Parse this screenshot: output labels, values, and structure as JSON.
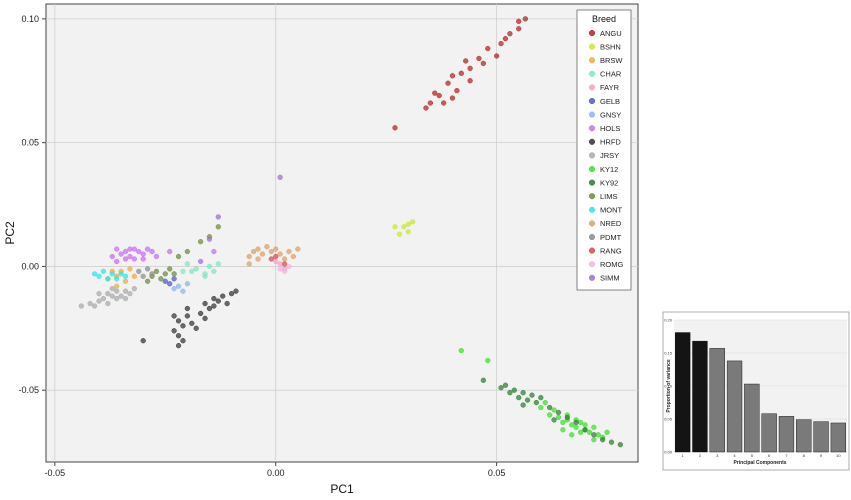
{
  "chart_data": [
    {
      "type": "scatter",
      "title": "",
      "xlabel": "PC1",
      "ylabel": "PC2",
      "xlim": [
        -0.052,
        0.082
      ],
      "ylim": [
        -0.079,
        0.106
      ],
      "xticks": [
        -0.05,
        0.0,
        0.05
      ],
      "xtick_labels": [
        "-0.05",
        "0.00",
        "0.05"
      ],
      "yticks": [
        -0.05,
        0.0,
        0.05,
        0.1
      ],
      "ytick_labels": [
        "-0.05",
        "0.00",
        "0.05",
        "0.10"
      ],
      "grid": true,
      "legend": {
        "title": "Breed",
        "placement": "top-right"
      },
      "series": [
        {
          "name": "ANGU",
          "color": "#b22222",
          "points": [
            [
              0.0565,
              0.1
            ],
            [
              0.055,
              0.096
            ],
            [
              0.052,
              0.092
            ],
            [
              0.048,
              0.088
            ],
            [
              0.05,
              0.085
            ],
            [
              0.046,
              0.084
            ],
            [
              0.044,
              0.08
            ],
            [
              0.042,
              0.078
            ],
            [
              0.04,
              0.077
            ],
            [
              0.039,
              0.074
            ],
            [
              0.041,
              0.071
            ],
            [
              0.037,
              0.069
            ],
            [
              0.038,
              0.066
            ],
            [
              0.035,
              0.066
            ],
            [
              0.036,
              0.07
            ],
            [
              0.034,
              0.064
            ],
            [
              0.044,
              0.075
            ],
            [
              0.047,
              0.082
            ],
            [
              0.051,
              0.09
            ],
            [
              0.053,
              0.094
            ],
            [
              0.027,
              0.056
            ],
            [
              0.055,
              0.099
            ],
            [
              0.043,
              0.083
            ],
            [
              0.04,
              0.068
            ]
          ]
        },
        {
          "name": "BSHN",
          "color": "#cbe33a",
          "points": [
            [
              0.029,
              0.016
            ],
            [
              0.03,
              0.014
            ],
            [
              0.031,
              0.018
            ],
            [
              0.027,
              0.016
            ],
            [
              0.03,
              0.017
            ],
            [
              0.028,
              0.013
            ]
          ]
        },
        {
          "name": "BRSW",
          "color": "#f4a83a",
          "points": [
            [
              -0.037,
              -0.002
            ],
            [
              -0.036,
              -0.004
            ],
            [
              -0.035,
              -0.002
            ],
            [
              -0.034,
              -0.006
            ],
            [
              -0.038,
              -0.005
            ],
            [
              -0.033,
              -0.001
            ],
            [
              -0.036,
              -0.008
            ],
            [
              -0.032,
              -0.004
            ]
          ]
        },
        {
          "name": "CHAR",
          "color": "#7fe6c4",
          "points": [
            [
              -0.018,
              -0.001
            ],
            [
              -0.016,
              -0.003
            ],
            [
              -0.019,
              -0.002
            ],
            [
              -0.015,
              0.0
            ],
            [
              -0.02,
              0.001
            ],
            [
              -0.017,
              0.002
            ],
            [
              -0.014,
              -0.002
            ],
            [
              -0.013,
              0.001
            ],
            [
              -0.021,
              -0.002
            ],
            [
              -0.016,
              -0.004
            ]
          ]
        },
        {
          "name": "FAYR",
          "color": "#f7a0c8",
          "points": [
            [
              0.001,
              0.001
            ],
            [
              0.002,
              -0.001
            ],
            [
              0.0,
              0.002
            ]
          ]
        },
        {
          "name": "GELB",
          "color": "#4e5bc4",
          "points": [
            [
              -0.024,
              -0.007
            ],
            [
              -0.023,
              -0.005
            ],
            [
              -0.025,
              -0.006
            ]
          ]
        },
        {
          "name": "GNSY",
          "color": "#8fb3ef",
          "points": [
            [
              -0.022,
              -0.008
            ],
            [
              -0.021,
              -0.01
            ],
            [
              -0.023,
              -0.009
            ],
            [
              -0.02,
              -0.007
            ]
          ]
        },
        {
          "name": "HOLS",
          "color": "#c86df0",
          "points": [
            [
              -0.036,
              0.007
            ],
            [
              -0.034,
              0.006
            ],
            [
              -0.032,
              0.007
            ],
            [
              -0.03,
              0.005
            ],
            [
              -0.033,
              0.004
            ],
            [
              -0.035,
              0.005
            ],
            [
              -0.031,
              0.006
            ],
            [
              -0.029,
              0.007
            ],
            [
              -0.037,
              0.004
            ],
            [
              -0.034,
              0.003
            ],
            [
              -0.032,
              0.003
            ],
            [
              -0.028,
              0.006
            ],
            [
              -0.03,
              0.003
            ],
            [
              -0.036,
              0.002
            ],
            [
              -0.033,
              0.007
            ],
            [
              -0.027,
              0.004
            ],
            [
              -0.024,
              0.006
            ],
            [
              -0.017,
              0.002
            ],
            [
              -0.014,
              0.006
            ]
          ]
        },
        {
          "name": "HRFD",
          "color": "#333333",
          "points": [
            [
              -0.022,
              -0.022
            ],
            [
              -0.021,
              -0.024
            ],
            [
              -0.023,
              -0.026
            ],
            [
              -0.02,
              -0.02
            ],
            [
              -0.022,
              -0.028
            ],
            [
              -0.019,
              -0.023
            ],
            [
              -0.021,
              -0.03
            ],
            [
              -0.018,
              -0.025
            ],
            [
              -0.023,
              -0.02
            ],
            [
              -0.02,
              -0.017
            ],
            [
              -0.016,
              -0.015
            ],
            [
              -0.015,
              -0.017
            ],
            [
              -0.013,
              -0.014
            ],
            [
              -0.014,
              -0.013
            ],
            [
              -0.012,
              -0.012
            ],
            [
              -0.011,
              -0.015
            ],
            [
              -0.01,
              -0.011
            ],
            [
              -0.017,
              -0.019
            ],
            [
              -0.016,
              -0.021
            ],
            [
              -0.009,
              -0.01
            ],
            [
              -0.03,
              -0.03
            ],
            [
              -0.022,
              -0.032
            ],
            [
              -0.014,
              -0.016
            ]
          ]
        },
        {
          "name": "JRSY",
          "color": "#a9a9a9",
          "points": [
            [
              -0.044,
              -0.016
            ],
            [
              -0.042,
              -0.015
            ],
            [
              -0.04,
              -0.014
            ],
            [
              -0.039,
              -0.013
            ],
            [
              -0.037,
              -0.012
            ],
            [
              -0.038,
              -0.011
            ],
            [
              -0.036,
              -0.013
            ],
            [
              -0.035,
              -0.012
            ],
            [
              -0.034,
              -0.01
            ],
            [
              -0.033,
              -0.011
            ],
            [
              -0.041,
              -0.016
            ],
            [
              -0.036,
              -0.01
            ],
            [
              -0.038,
              -0.015
            ],
            [
              -0.032,
              -0.009
            ],
            [
              -0.04,
              -0.011
            ],
            [
              -0.034,
              -0.013
            ],
            [
              -0.037,
              -0.009
            ]
          ]
        },
        {
          "name": "KY12",
          "color": "#3fdc2e",
          "points": [
            [
              0.062,
              -0.06
            ],
            [
              0.064,
              -0.061
            ],
            [
              0.065,
              -0.063
            ],
            [
              0.066,
              -0.062
            ],
            [
              0.067,
              -0.064
            ],
            [
              0.068,
              -0.065
            ],
            [
              0.069,
              -0.063
            ],
            [
              0.07,
              -0.066
            ],
            [
              0.071,
              -0.067
            ],
            [
              0.072,
              -0.065
            ],
            [
              0.073,
              -0.068
            ],
            [
              0.074,
              -0.069
            ],
            [
              0.063,
              -0.058
            ],
            [
              0.06,
              -0.057
            ],
            [
              0.066,
              -0.06
            ],
            [
              0.068,
              -0.062
            ],
            [
              0.07,
              -0.064
            ],
            [
              0.072,
              -0.07
            ],
            [
              0.069,
              -0.067
            ],
            [
              0.075,
              -0.067
            ],
            [
              0.042,
              -0.034
            ],
            [
              0.048,
              -0.038
            ],
            [
              0.061,
              -0.055
            ],
            [
              0.065,
              -0.066
            ],
            [
              0.067,
              -0.068
            ]
          ]
        },
        {
          "name": "KY92",
          "color": "#2e7d32",
          "points": [
            [
              0.052,
              -0.048
            ],
            [
              0.054,
              -0.05
            ],
            [
              0.056,
              -0.051
            ],
            [
              0.055,
              -0.053
            ],
            [
              0.057,
              -0.054
            ],
            [
              0.058,
              -0.052
            ],
            [
              0.059,
              -0.055
            ],
            [
              0.053,
              -0.051
            ],
            [
              0.06,
              -0.053
            ],
            [
              0.051,
              -0.049
            ],
            [
              0.062,
              -0.057
            ],
            [
              0.064,
              -0.059
            ],
            [
              0.066,
              -0.061
            ],
            [
              0.068,
              -0.063
            ],
            [
              0.07,
              -0.066
            ],
            [
              0.072,
              -0.068
            ],
            [
              0.074,
              -0.07
            ],
            [
              0.078,
              -0.072
            ],
            [
              0.076,
              -0.071
            ],
            [
              0.063,
              -0.062
            ],
            [
              0.056,
              -0.056
            ],
            [
              0.047,
              -0.046
            ]
          ]
        },
        {
          "name": "LIMS",
          "color": "#6d8b3a",
          "points": [
            [
              -0.028,
              -0.004
            ],
            [
              -0.027,
              -0.002
            ],
            [
              -0.026,
              -0.005
            ],
            [
              -0.025,
              -0.003
            ],
            [
              -0.029,
              -0.006
            ],
            [
              -0.024,
              -0.001
            ],
            [
              -0.023,
              -0.003
            ],
            [
              -0.022,
              0.004
            ],
            [
              -0.02,
              0.006
            ],
            [
              -0.017,
              0.01
            ],
            [
              -0.015,
              0.012
            ],
            [
              -0.013,
              0.016
            ]
          ]
        },
        {
          "name": "MONT",
          "color": "#2ee6e6",
          "points": [
            [
              -0.04,
              -0.004
            ],
            [
              -0.039,
              -0.002
            ],
            [
              -0.038,
              -0.005
            ],
            [
              -0.041,
              -0.003
            ],
            [
              -0.037,
              -0.003
            ],
            [
              -0.036,
              -0.005
            ],
            [
              -0.035,
              -0.003
            ],
            [
              -0.034,
              -0.004
            ]
          ]
        },
        {
          "name": "NRED",
          "color": "#d9a06a",
          "points": [
            [
              -0.006,
              0.004
            ],
            [
              -0.005,
              0.006
            ],
            [
              -0.004,
              0.007
            ],
            [
              -0.003,
              0.005
            ],
            [
              -0.002,
              0.008
            ],
            [
              -0.001,
              0.006
            ],
            [
              0.0,
              0.007
            ],
            [
              0.001,
              0.005
            ],
            [
              0.002,
              0.003
            ],
            [
              0.003,
              0.006
            ],
            [
              0.004,
              0.004
            ],
            [
              0.005,
              0.007
            ],
            [
              -0.004,
              0.003
            ],
            [
              -0.006,
              0.001
            ]
          ]
        },
        {
          "name": "PDMT",
          "color": "#8c8c8c",
          "points": [
            [
              -0.031,
              -0.002
            ],
            [
              -0.03,
              -0.004
            ],
            [
              -0.029,
              -0.001
            ],
            [
              -0.028,
              -0.003
            ]
          ]
        },
        {
          "name": "RANG",
          "color": "#d84a4a",
          "points": [
            [
              -0.001,
              0.003
            ],
            [
              0.0,
              0.004
            ],
            [
              0.002,
              0.001
            ]
          ]
        },
        {
          "name": "ROMG",
          "color": "#f0b6e0",
          "points": [
            [
              0.001,
              -0.001
            ],
            [
              0.002,
              -0.002
            ],
            [
              0.003,
              0.0
            ]
          ]
        },
        {
          "name": "SIMM",
          "color": "#a070c8",
          "points": [
            [
              0.001,
              0.036
            ],
            [
              -0.013,
              0.02
            ],
            [
              -0.015,
              0.011
            ]
          ]
        }
      ]
    },
    {
      "type": "bar",
      "title": "",
      "xlabel": "Principal Components",
      "ylabel": "Proportion of variance",
      "categories": [
        "1",
        "2",
        "3",
        "4",
        "5",
        "6",
        "7",
        "8",
        "9",
        "10"
      ],
      "values": [
        0.181,
        0.168,
        0.157,
        0.138,
        0.103,
        0.058,
        0.054,
        0.049,
        0.046,
        0.044
      ],
      "bar_colors": [
        "#141414",
        "#141414",
        "#7a7a7a",
        "#7a7a7a",
        "#7a7a7a",
        "#7a7a7a",
        "#7a7a7a",
        "#7a7a7a",
        "#7a7a7a",
        "#7a7a7a"
      ],
      "ylim": [
        0,
        0.2
      ],
      "yticks": [
        0.0,
        0.05,
        0.1,
        0.15,
        0.2
      ],
      "ytick_labels": [
        "0.00",
        "0.05",
        "0.10",
        "0.15",
        "0.20"
      ]
    }
  ]
}
